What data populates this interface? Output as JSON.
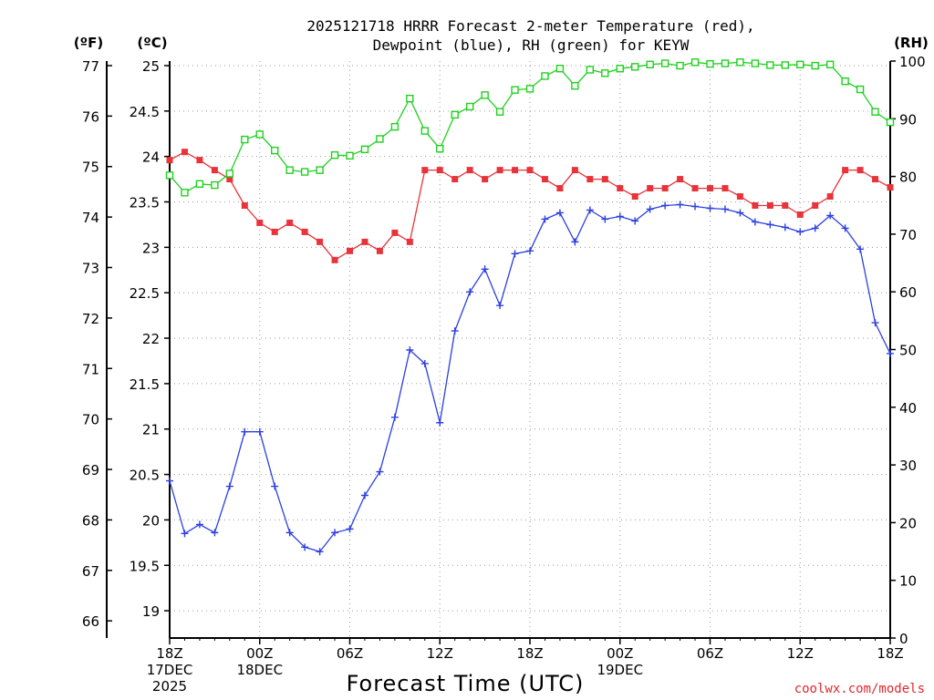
{
  "title_line1": "2025121718 HRRR Forecast 2-meter Temperature (red),",
  "title_line2": "Dewpoint (blue), RH (green) for KEYW",
  "unit_f": "(ºF)",
  "unit_c": "(ºC)",
  "unit_rh": "(RH)",
  "xlabel": "Forecast Time (UTC)",
  "credit": "coolwx.com/models",
  "colors": {
    "temperature": "#e8333a",
    "dewpoint": "#2b3fe0",
    "rh": "#1fd11f"
  },
  "chart_data": {
    "type": "line",
    "title": "2025121718 HRRR Forecast 2-meter Temperature (red), Dewpoint (blue), RH (green) for KEYW",
    "xlabel": "Forecast Time (UTC)",
    "x_hours": [
      0,
      1,
      2,
      3,
      4,
      5,
      6,
      7,
      8,
      9,
      10,
      11,
      12,
      13,
      14,
      15,
      16,
      17,
      18,
      19,
      20,
      21,
      22,
      23,
      24,
      25,
      26,
      27,
      28,
      29,
      30,
      31,
      32,
      33,
      34,
      35,
      36,
      37,
      38,
      39,
      40,
      41,
      42,
      43,
      44,
      45,
      46,
      47,
      48
    ],
    "xlim": [
      0,
      48
    ],
    "x_ticks": [
      {
        "hour": 0,
        "lines": [
          "18Z",
          "17DEC",
          "2025"
        ]
      },
      {
        "hour": 6,
        "lines": [
          "00Z",
          "18DEC"
        ]
      },
      {
        "hour": 12,
        "lines": [
          "06Z"
        ]
      },
      {
        "hour": 18,
        "lines": [
          "12Z"
        ]
      },
      {
        "hour": 24,
        "lines": [
          "18Z"
        ]
      },
      {
        "hour": 30,
        "lines": [
          "00Z",
          "19DEC"
        ]
      },
      {
        "hour": 36,
        "lines": [
          "06Z"
        ]
      },
      {
        "hour": 42,
        "lines": [
          "12Z"
        ]
      },
      {
        "hour": 48,
        "lines": [
          "18Z"
        ]
      }
    ],
    "ylim_c": [
      18.7,
      25.05
    ],
    "y_ticks_c": [
      "19",
      "19.5",
      "20",
      "20.5",
      "21",
      "21.5",
      "22",
      "22.5",
      "23",
      "23.5",
      "24",
      "24.5",
      "25"
    ],
    "y_ticks_f": [
      "66",
      "67",
      "68",
      "69",
      "70",
      "71",
      "72",
      "73",
      "74",
      "75",
      "76",
      "77"
    ],
    "ylim_rh": [
      0,
      100
    ],
    "y_ticks_rh": [
      "0",
      "10",
      "20",
      "30",
      "40",
      "50",
      "60",
      "70",
      "80",
      "90",
      "100"
    ],
    "grid": true,
    "series": [
      {
        "name": "Temperature",
        "axis": "c",
        "marker": "filled-square",
        "values": [
          23.96,
          24.05,
          23.96,
          23.85,
          23.75,
          23.46,
          23.27,
          23.17,
          23.27,
          23.17,
          23.06,
          22.86,
          22.96,
          23.06,
          22.96,
          23.16,
          23.06,
          23.85,
          23.85,
          23.75,
          23.85,
          23.75,
          23.85,
          23.85,
          23.85,
          23.75,
          23.65,
          23.85,
          23.75,
          23.75,
          23.65,
          23.56,
          23.65,
          23.65,
          23.75,
          23.65,
          23.65,
          23.65,
          23.56,
          23.46,
          23.46,
          23.46,
          23.36,
          23.46,
          23.56,
          23.85,
          23.85,
          23.75,
          23.66
        ]
      },
      {
        "name": "Dewpoint",
        "axis": "c",
        "marker": "plus",
        "values": [
          20.43,
          19.85,
          19.95,
          19.86,
          20.37,
          20.97,
          20.97,
          20.37,
          19.86,
          19.7,
          19.65,
          19.86,
          19.9,
          20.27,
          20.53,
          21.13,
          21.87,
          21.72,
          21.07,
          22.08,
          22.51,
          22.76,
          22.36,
          22.93,
          22.96,
          23.31,
          23.38,
          23.06,
          23.41,
          23.31,
          23.34,
          23.29,
          23.42,
          23.46,
          23.47,
          23.45,
          23.43,
          23.42,
          23.38,
          23.28,
          23.25,
          23.22,
          23.17,
          23.21,
          23.35,
          23.21,
          22.98,
          22.17,
          21.83
        ]
      },
      {
        "name": "RH",
        "axis": "rh",
        "marker": "open-square",
        "values": [
          80.2,
          77.2,
          78.7,
          78.5,
          80.5,
          86.4,
          87.3,
          84.5,
          81.1,
          80.8,
          81.1,
          83.7,
          83.6,
          84.7,
          86.5,
          88.6,
          93.5,
          87.9,
          84.8,
          90.7,
          92.1,
          94.1,
          91.2,
          95.0,
          95.2,
          97.4,
          98.7,
          95.7,
          98.5,
          97.9,
          98.7,
          99.0,
          99.4,
          99.6,
          99.2,
          99.8,
          99.5,
          99.6,
          99.8,
          99.6,
          99.3,
          99.3,
          99.4,
          99.2,
          99.4,
          96.5,
          95.1,
          91.2,
          89.4
        ]
      }
    ]
  }
}
